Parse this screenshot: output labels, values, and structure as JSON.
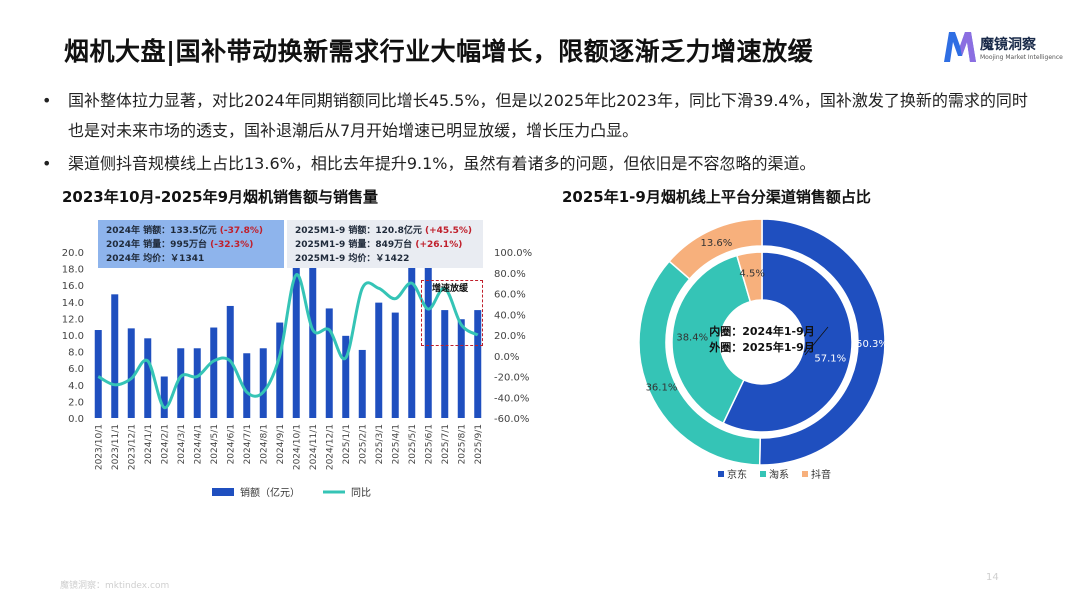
{
  "header": {
    "title": "烟机大盘|国补带动换新需求行业大幅增长，限额逐渐乏力增速放缓",
    "logo_name": "魔镜洞察",
    "logo_sub": "Moojing Market Intelligence"
  },
  "bullets": [
    "国补整体拉力显著，对比2024年同期销额同比增长45.5%，但是以2025年比2023年，同比下滑39.4%，国补激发了换新的需求的同时也是对未来市场的透支，国补退潮后从7月开始增速已明显放缓，增长压力凸显。",
    "渠道侧抖音规模线上占比13.6%，相比去年提升9.1%，虽然有着诸多的问题，但依旧是不容忽略的渠道。"
  ],
  "footer": {
    "source": "魔镜洞察：mktindex.com",
    "page": "14"
  },
  "colors": {
    "bar": "#1f4fbf",
    "line": "#35c4b6",
    "jd": "#1f4fbf",
    "tb": "#35c4b6",
    "dy": "#f7b07c"
  },
  "left_chart": {
    "title": "2023年10月-2025年9月烟机销售额与销售量",
    "info_2024": {
      "sales_label": "2024年 销额：133.5亿元",
      "sales_change": "(-37.8%)",
      "volume_label": "2024年 销量：995万台",
      "volume_change": "(-32.3%)",
      "price_label": "2024年 均价：￥1341"
    },
    "info_2025": {
      "sales_label": "2025M1-9 销额：120.8亿元",
      "sales_change": "(+45.5%)",
      "volume_label": "2025M1-9 销量：849万台",
      "volume_change": "(+26.1%)",
      "price_label": "2025M1-9 均价：￥1422"
    },
    "annotation": "增速放缓"
  },
  "right_chart": {
    "title": "2025年1-9月烟机线上平台分渠道销售额占比",
    "center_line1": "内圈：2024年1-9月",
    "center_line2": "外圈：2025年1-9月"
  },
  "chart_data": [
    {
      "type": "bar",
      "title": "2023年10月-2025年9月烟机销售额与销售量",
      "categories": [
        "2023/10/1",
        "2023/11/1",
        "2023/12/1",
        "2024/1/1",
        "2024/2/1",
        "2024/3/1",
        "2024/4/1",
        "2024/5/1",
        "2024/6/1",
        "2024/7/1",
        "2024/8/1",
        "2024/9/1",
        "2024/10/1",
        "2024/11/1",
        "2024/12/1",
        "2025/1/1",
        "2025/2/1",
        "2025/3/1",
        "2025/4/1",
        "2025/5/1",
        "2025/6/1",
        "2025/7/1",
        "2025/8/1",
        "2025/9/1"
      ],
      "series": [
        {
          "name": "销额（亿元）",
          "type": "bar",
          "axis": "left",
          "values": [
            10.6,
            14.9,
            10.8,
            9.6,
            5.0,
            8.4,
            8.4,
            10.9,
            13.5,
            7.8,
            8.4,
            11.5,
            18.2,
            18.2,
            13.2,
            9.9,
            8.2,
            13.9,
            12.7,
            18.2,
            18.2,
            13.0,
            11.9,
            13.0
          ]
        },
        {
          "name": "同比",
          "type": "line",
          "axis": "right",
          "values": [
            -20,
            -28,
            -22,
            -5,
            -50,
            -20,
            -20,
            -5,
            -5,
            -35,
            -35,
            0,
            78,
            25,
            25,
            -2,
            65,
            65,
            55,
            70,
            45,
            65,
            30,
            20
          ]
        }
      ],
      "ylim": [
        0,
        20
      ],
      "y2lim": [
        -60,
        100
      ],
      "yticks": [
        "0.0",
        "2.0",
        "4.0",
        "6.0",
        "8.0",
        "10.0",
        "12.0",
        "14.0",
        "16.0",
        "18.0",
        "20.0"
      ],
      "y2ticks": [
        "-60.0%",
        "-40.0%",
        "-20.0%",
        "0.0%",
        "20.0%",
        "40.0%",
        "60.0%",
        "80.0%",
        "100.0%"
      ],
      "legend": "bottom"
    },
    {
      "type": "pie",
      "title": "2025年1-9月烟机线上平台分渠道销售额占比",
      "categories": [
        "京东",
        "淘系",
        "抖音"
      ],
      "series": [
        {
          "name": "外圈：2025年1-9月",
          "values": [
            50.3,
            36.1,
            13.6
          ]
        },
        {
          "name": "内圈：2024年1-9月",
          "values": [
            57.1,
            38.4,
            4.5
          ]
        }
      ],
      "labels_outer": [
        "50.3%",
        "36.1%",
        "13.6%"
      ],
      "labels_inner": [
        "57.1%",
        "38.4%",
        "4.5%"
      ],
      "legend": "bottom"
    }
  ]
}
